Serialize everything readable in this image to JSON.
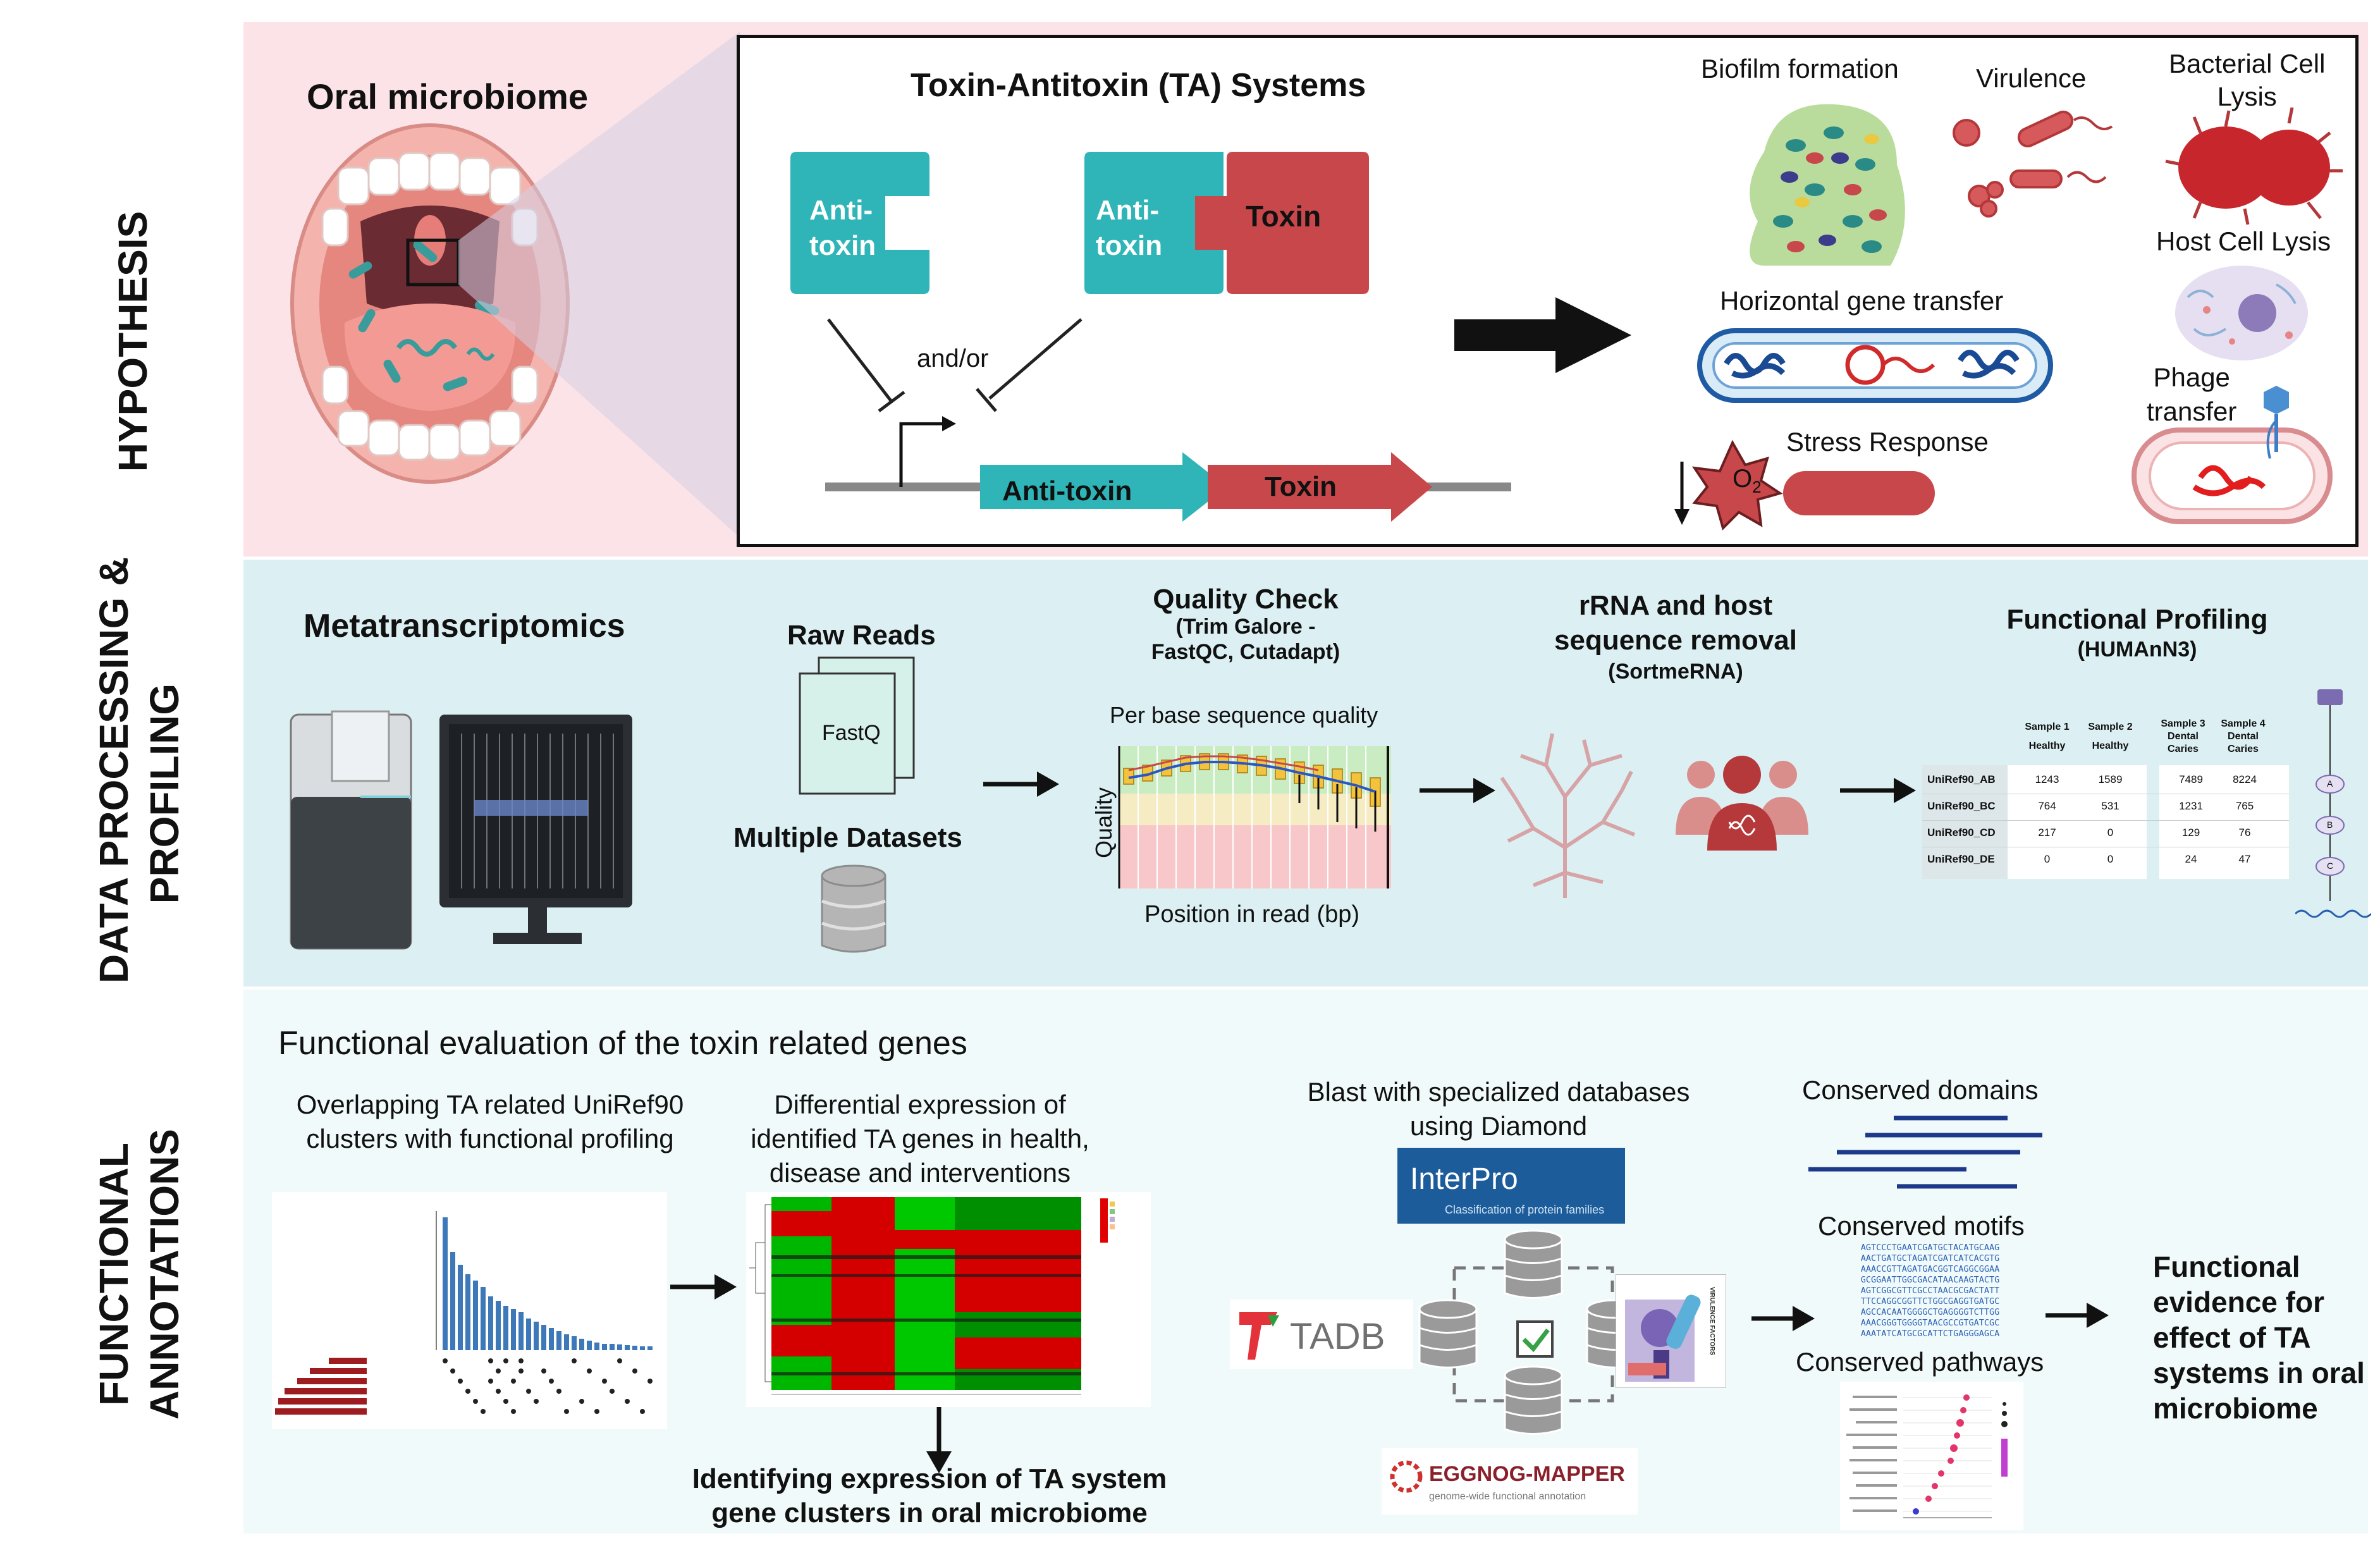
{
  "sections": {
    "hypothesis": "HYPOTHESIS",
    "processing_line1": "DATA PROCESSING &",
    "processing_line2": "PROFILING",
    "annotations_line1": "FUNCTIONAL",
    "annotations_line2": "ANNOTATIONS"
  },
  "colors": {
    "hypothesis_bg": "#fbe3e7",
    "processing_bg": "#dcf0f4",
    "annotations_bg": "#f1fafa",
    "antitoxin": "#2fb5b8",
    "toxin": "#c8474a"
  },
  "hypothesis": {
    "oral_title": "Oral microbiome",
    "ta_title": "Toxin-Antitoxin (TA) Systems",
    "antitoxin_block": [
      "Anti-",
      "toxin"
    ],
    "complex_antitoxin": [
      "Anti-",
      "toxin"
    ],
    "complex_toxin": "Toxin",
    "andor": "and/or",
    "gene_antitoxin": "Anti-toxin",
    "gene_toxin": "Toxin",
    "effects": {
      "biofilm": "Biofilm formation",
      "virulence": "Virulence",
      "bacterial_lysis": [
        "Bacterial Cell",
        "Lysis"
      ],
      "host_lysis": "Host Cell Lysis",
      "hgt": "Horizontal gene transfer",
      "phage": [
        "Phage",
        "transfer"
      ],
      "stress": "Stress Response",
      "o2": "O",
      "o2_sub": "2"
    }
  },
  "processing": {
    "metatranscriptomics": "Metatranscriptomics",
    "raw_reads": "Raw Reads",
    "fastq": "FastQ",
    "multiple_datasets": "Multiple Datasets",
    "qc_title": "Quality Check",
    "qc_sub1": "(Trim Galore -",
    "qc_sub2": "FastQC, Cutadapt)",
    "qc_chart_title": "Per base sequence quality",
    "qc_ylabel": "Quality",
    "qc_xlabel": "Position in read (bp)",
    "rrna_line1": "rRNA and host",
    "rrna_line2": "sequence removal",
    "rrna_sub": "(SortmeRNA)",
    "fp_title": "Functional Profiling",
    "fp_sub": "(HUMAnN3)",
    "table": {
      "headers": [
        [
          "Sample 1",
          "Healthy"
        ],
        [
          "Sample 2",
          "Healthy"
        ],
        [
          "Sample 3",
          "Dental Caries"
        ],
        [
          "Sample 4",
          "Dental Caries"
        ]
      ],
      "rows": [
        {
          "id": "UniRef90_AB",
          "vals": [
            "1243",
            "1589",
            "7489",
            "8224"
          ]
        },
        {
          "id": "UniRef90_BC",
          "vals": [
            "764",
            "531",
            "1231",
            "765"
          ]
        },
        {
          "id": "UniRef90_CD",
          "vals": [
            "217",
            "0",
            "129",
            "76"
          ]
        },
        {
          "id": "UniRef90_DE",
          "vals": [
            "0",
            "0",
            "24",
            "47"
          ]
        }
      ]
    },
    "pathway_nodes": [
      "A",
      "B",
      "C"
    ]
  },
  "annotations": {
    "title": "Functional evaluation of the toxin related genes",
    "overlap_line1": "Overlapping TA related UniRef90",
    "overlap_line2": "clusters with functional profiling",
    "diff_line1": "Differential expression of",
    "diff_line2": "identified TA genes in health,",
    "diff_line3": "disease and interventions",
    "identify_line1": "Identifying expression of TA system",
    "identify_line2": "gene clusters in oral microbiome",
    "blast_line1": "Blast with specialized databases",
    "blast_line2": "using Diamond",
    "interpro": "InterPro",
    "interpro_sub": "Classification of protein families",
    "tadb": "TADB",
    "eggnog": "EGGNOG-MAPPER",
    "eggnog_sub": "genome-wide functional annotation",
    "conserved_domains": "Conserved domains",
    "conserved_motifs": "Conserved motifs",
    "conserved_pathways": "Conserved pathways",
    "motif_seqs": [
      "AGTCCCTGAATCGATGCTACATGCAAG",
      "AACTGATGCTAGATCGATCATCACGTG",
      "AAACCGTTAGATGACGGTCAGGCGGAA",
      "GCGGAATTGGCGACATAACAAGTACTG",
      "AGTCGGCGTTCGCCTAACGCGACTATT",
      "TTCCAGGCGGTTCTGGCGAGGTGATGC",
      "AGCCACAATGGGGCTGAGGGGTCTTGG",
      "AAACGGGTGGGGTAACGCCGTGATCGC",
      "AAATATCATGCGCATTCTGAGGGAGCA"
    ],
    "final_line1": "Functional",
    "final_line2": "evidence for",
    "final_line3": "effect of TA",
    "final_line4": "systems in oral",
    "final_line5": "microbiome"
  }
}
